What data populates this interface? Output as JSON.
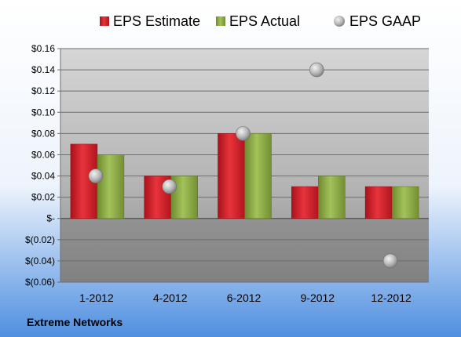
{
  "company": "Extreme Networks",
  "colors": {
    "estimate": "#d9202a",
    "actual": "#8fad45",
    "gaap": "#b8b8b8",
    "background_top": "#ffffff",
    "background_bottom": "#4f8fe0"
  },
  "chart_data": {
    "type": "bar",
    "categories": [
      "1-2012",
      "4-2012",
      "6-2012",
      "9-2012",
      "12-2012"
    ],
    "series": [
      {
        "name": "EPS Estimate",
        "kind": "bar",
        "values": [
          0.07,
          0.04,
          0.08,
          0.03,
          0.03
        ]
      },
      {
        "name": "EPS Actual",
        "kind": "bar",
        "values": [
          0.06,
          0.04,
          0.08,
          0.04,
          0.03
        ]
      },
      {
        "name": "EPS GAAP",
        "kind": "marker",
        "values": [
          0.04,
          0.03,
          0.08,
          0.14,
          -0.04
        ]
      }
    ],
    "ylim": [
      -0.06,
      0.16
    ],
    "yticks": [
      0.16,
      0.14,
      0.12,
      0.1,
      0.08,
      0.06,
      0.04,
      0.02,
      0,
      -0.02,
      -0.04,
      -0.06
    ],
    "ytick_labels": [
      "$0.16",
      "$0.14",
      "$0.12",
      "$0.10",
      "$0.08",
      "$0.06",
      "$0.04",
      "$0.02",
      "$-",
      "$(0.02)",
      "$(0.04)",
      "$(0.06)"
    ],
    "grid": true,
    "legend_position": "top"
  }
}
